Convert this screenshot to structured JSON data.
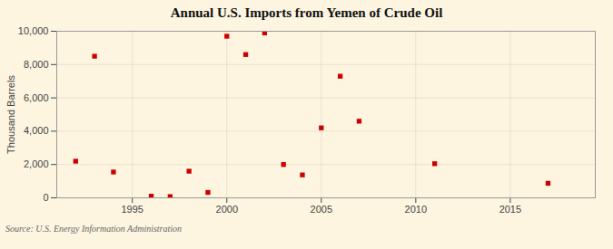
{
  "chart_data": {
    "type": "scatter",
    "title": "Annual U.S. Imports from Yemen of Crude Oil",
    "ylabel": "Thousand Barrels",
    "caption": "Source: U.S. Energy Information Administration",
    "x": [
      1992,
      1993,
      1994,
      1996,
      1997,
      1998,
      1999,
      2000,
      2001,
      2002,
      2003,
      2004,
      2005,
      2006,
      2007,
      2011,
      2017
    ],
    "values": [
      2200,
      8500,
      1550,
      100,
      75,
      1600,
      325,
      9700,
      8600,
      9900,
      2000,
      1375,
      4200,
      7300,
      4600,
      2050,
      875
    ],
    "color": "#cc0000",
    "marker": "square",
    "xlim": [
      1991.0,
      2019.5
    ],
    "xticks": [
      1995,
      2000,
      2005,
      2010,
      2015
    ],
    "ylim": [
      0,
      10000
    ],
    "yticks": [
      0,
      {
        "value": 2000,
        "label": "2,000"
      },
      {
        "value": 4000,
        "label": "4,000"
      },
      {
        "value": 6000,
        "label": "6,000"
      },
      {
        "value": 8000,
        "label": "8,000"
      },
      {
        "value": 10000,
        "label": "10,000"
      }
    ],
    "grid": true
  }
}
